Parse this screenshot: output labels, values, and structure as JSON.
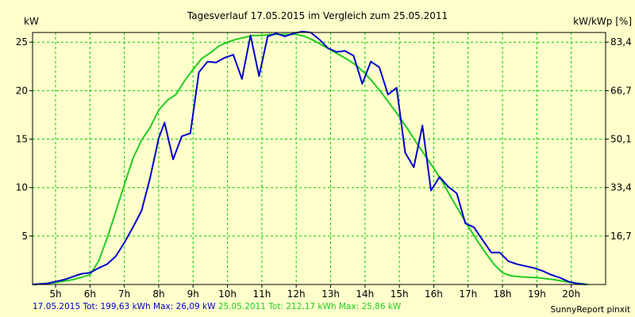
{
  "chart_data": {
    "type": "line",
    "title": "Tagesverlauf 17.05.2015 im Vergleich zum 25.05.2011",
    "ylabel_left": "kW",
    "ylabel_right": "kW/kWp [%]",
    "xlim": [
      4.33,
      21.0
    ],
    "ylim": [
      0,
      26
    ],
    "x_ticks": [
      5,
      6,
      7,
      8,
      9,
      10,
      11,
      12,
      13,
      14,
      15,
      16,
      17,
      18,
      19,
      20
    ],
    "x_tick_labels": [
      "5h",
      "6h",
      "7h",
      "8h",
      "9h",
      "10h",
      "11h",
      "12h",
      "13h",
      "14h",
      "15h",
      "16h",
      "17h",
      "18h",
      "19h",
      "20h"
    ],
    "y_ticks_left": [
      5,
      10,
      15,
      20,
      25
    ],
    "y_tick_labels_left": [
      "5",
      "10",
      "15",
      "20",
      "25"
    ],
    "y_ticks_right_at": [
      5,
      10,
      15,
      20,
      25
    ],
    "y_tick_labels_right": [
      "16,7",
      "33,4",
      "50,1",
      "66,7",
      "83,4"
    ],
    "grid": true,
    "colors": {
      "background": "#ffffcc",
      "grid": "#00cc00",
      "series_2015": "#0000cc",
      "series_2011": "#22cc22",
      "axis": "#000000"
    },
    "series": [
      {
        "name": "17.05.2015 Tot: 199,63 kWh Max: 26,09 kW",
        "color": "#0000cc",
        "x": [
          4.33,
          4.75,
          5.0,
          5.25,
          5.5,
          5.75,
          6.0,
          6.25,
          6.5,
          6.75,
          7.0,
          7.25,
          7.5,
          7.75,
          8.0,
          8.17,
          8.42,
          8.67,
          8.92,
          9.17,
          9.42,
          9.67,
          9.92,
          10.17,
          10.42,
          10.67,
          10.92,
          11.17,
          11.42,
          11.67,
          11.92,
          12.17,
          12.42,
          12.67,
          12.92,
          13.17,
          13.42,
          13.67,
          13.92,
          14.17,
          14.42,
          14.67,
          14.92,
          15.17,
          15.42,
          15.67,
          15.92,
          16.17,
          16.42,
          16.67,
          16.92,
          17.17,
          17.42,
          17.67,
          17.92,
          18.17,
          18.42,
          18.67,
          18.92,
          19.17,
          19.42,
          19.67,
          19.92,
          20.17,
          20.42
        ],
        "y": [
          0.0,
          0.1,
          0.3,
          0.5,
          0.8,
          1.1,
          1.2,
          1.7,
          2.1,
          2.9,
          4.3,
          5.9,
          7.6,
          11.0,
          15.1,
          16.7,
          12.9,
          15.3,
          15.6,
          21.9,
          23.0,
          22.9,
          23.4,
          23.7,
          21.2,
          25.7,
          21.5,
          25.6,
          25.9,
          25.6,
          25.9,
          26.1,
          26.0,
          25.3,
          24.4,
          24.0,
          24.1,
          23.6,
          20.7,
          23.0,
          22.4,
          19.6,
          20.3,
          13.6,
          12.1,
          16.4,
          9.7,
          11.1,
          10.1,
          9.4,
          6.3,
          5.9,
          4.6,
          3.3,
          3.3,
          2.4,
          2.1,
          1.9,
          1.7,
          1.4,
          1.0,
          0.7,
          0.3,
          0.1,
          0.0
        ]
      },
      {
        "name": "25.05.2011 Tot: 212,17 kWh Max: 25,86 kW",
        "color": "#22cc22",
        "x": [
          4.33,
          5.0,
          5.5,
          6.0,
          6.25,
          6.5,
          6.75,
          7.0,
          7.25,
          7.5,
          7.75,
          8.0,
          8.25,
          8.5,
          8.75,
          9.0,
          9.25,
          9.5,
          9.75,
          10.0,
          10.25,
          10.5,
          10.75,
          11.0,
          11.25,
          11.5,
          11.75,
          12.0,
          12.25,
          12.5,
          12.75,
          13.0,
          13.25,
          13.5,
          13.75,
          14.0,
          14.25,
          14.5,
          14.75,
          15.0,
          15.25,
          15.5,
          15.75,
          16.0,
          16.25,
          16.5,
          16.75,
          17.0,
          17.25,
          17.5,
          17.75,
          18.0,
          18.25,
          18.5,
          19.0,
          19.5,
          20.0,
          20.25,
          20.5
        ],
        "y": [
          0.0,
          0.2,
          0.5,
          1.0,
          2.4,
          4.8,
          7.5,
          10.3,
          13.0,
          14.9,
          16.2,
          18.0,
          19.0,
          19.6,
          21.0,
          22.2,
          23.3,
          23.9,
          24.6,
          25.0,
          25.3,
          25.5,
          25.7,
          25.7,
          25.8,
          25.8,
          25.8,
          25.8,
          25.6,
          25.2,
          24.7,
          24.2,
          23.7,
          23.2,
          22.6,
          21.8,
          20.8,
          19.7,
          18.5,
          17.3,
          16.0,
          14.6,
          13.3,
          12.0,
          10.6,
          9.0,
          7.5,
          6.0,
          4.6,
          3.3,
          2.1,
          1.2,
          0.9,
          0.8,
          0.7,
          0.5,
          0.2,
          0.1,
          0.0
        ]
      }
    ],
    "legend_placement": "bottom-left",
    "credit": "SunnyReport pinxit"
  }
}
